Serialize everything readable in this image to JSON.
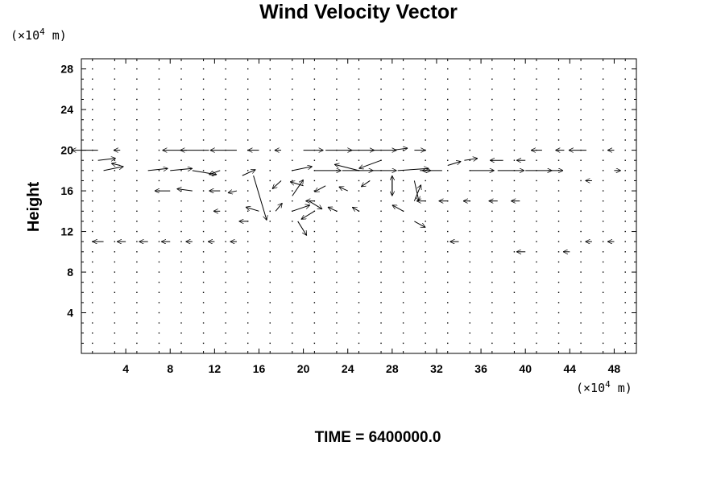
{
  "chart_data": {
    "type": "vector-field",
    "title": "Wind Velocity Vector",
    "ylabel": "Height",
    "x_unit_prefix": "(×10",
    "x_unit_exp": "4",
    "x_unit_suffix": " m)",
    "y_unit_prefix": "(×10",
    "y_unit_exp": "4",
    "y_unit_suffix": " m)",
    "footer": "TIME = 6400000.0",
    "xlim": [
      0,
      50
    ],
    "ylim": [
      0,
      29
    ],
    "x_ticks": [
      4,
      8,
      12,
      16,
      20,
      24,
      28,
      32,
      36,
      40,
      44,
      48
    ],
    "y_ticks": [
      4,
      8,
      12,
      16,
      20,
      24,
      28
    ],
    "x_tick_labels": [
      "4",
      "8",
      "12",
      "16",
      "20",
      "24",
      "28",
      "32",
      "36",
      "40",
      "44",
      "48"
    ],
    "y_tick_labels": [
      "4",
      "8",
      "12",
      "16",
      "20",
      "24",
      "28"
    ],
    "grid": false,
    "vectors": [
      {
        "x": 1.5,
        "y": 20,
        "u": -2.4,
        "v": 0
      },
      {
        "x": 3.5,
        "y": 20,
        "u": -0.6,
        "v": 0
      },
      {
        "x": 9.5,
        "y": 20,
        "u": -2.2,
        "v": 0
      },
      {
        "x": 11.5,
        "y": 20,
        "u": -2.6,
        "v": 0
      },
      {
        "x": 14,
        "y": 20,
        "u": -2.4,
        "v": 0
      },
      {
        "x": 16,
        "y": 20,
        "u": -1.0,
        "v": 0
      },
      {
        "x": 18,
        "y": 20,
        "u": -0.6,
        "v": 0
      },
      {
        "x": 20,
        "y": 20,
        "u": 1.8,
        "v": 0
      },
      {
        "x": 22,
        "y": 20,
        "u": 2.4,
        "v": 0
      },
      {
        "x": 24,
        "y": 20,
        "u": 2.4,
        "v": 0
      },
      {
        "x": 26,
        "y": 20,
        "u": 2.4,
        "v": 0
      },
      {
        "x": 28,
        "y": 20,
        "u": 1.4,
        "v": 0.2
      },
      {
        "x": 30,
        "y": 20,
        "u": 1.0,
        "v": 0
      },
      {
        "x": 33,
        "y": 18.5,
        "u": 1.2,
        "v": 0.4
      },
      {
        "x": 34.5,
        "y": 19,
        "u": 1.2,
        "v": 0.2
      },
      {
        "x": 38,
        "y": 19,
        "u": -1.2,
        "v": 0
      },
      {
        "x": 40,
        "y": 19,
        "u": -0.8,
        "v": 0
      },
      {
        "x": 41.5,
        "y": 20,
        "u": -1.0,
        "v": 0
      },
      {
        "x": 43.5,
        "y": 20,
        "u": -0.8,
        "v": 0
      },
      {
        "x": 45.5,
        "y": 20,
        "u": -1.6,
        "v": 0
      },
      {
        "x": 48,
        "y": 20,
        "u": -0.6,
        "v": 0
      },
      {
        "x": 1.5,
        "y": 19,
        "u": 1.6,
        "v": 0.2
      },
      {
        "x": 3.5,
        "y": 18.5,
        "u": -0.8,
        "v": 0.2
      },
      {
        "x": 2,
        "y": 18,
        "u": 1.8,
        "v": 0.4
      },
      {
        "x": 6,
        "y": 18,
        "u": 1.8,
        "v": 0.2
      },
      {
        "x": 8,
        "y": 18,
        "u": 2.0,
        "v": 0.2
      },
      {
        "x": 10,
        "y": 18,
        "u": 2.2,
        "v": -0.4
      },
      {
        "x": 12.5,
        "y": 18,
        "u": -1.0,
        "v": -0.4
      },
      {
        "x": 14.5,
        "y": 17.5,
        "u": 1.2,
        "v": 0.6
      },
      {
        "x": 19,
        "y": 18,
        "u": 1.8,
        "v": 0.4
      },
      {
        "x": 21,
        "y": 18,
        "u": 2.4,
        "v": 0
      },
      {
        "x": 23.5,
        "y": 18,
        "u": 2.8,
        "v": 0
      },
      {
        "x": 26,
        "y": 18,
        "u": 2.4,
        "v": 0
      },
      {
        "x": 28.5,
        "y": 18,
        "u": 2.8,
        "v": 0.2
      },
      {
        "x": 30.5,
        "y": 18,
        "u": 1.0,
        "v": 0
      },
      {
        "x": 32.5,
        "y": 18,
        "u": -1.8,
        "v": 0
      },
      {
        "x": 35,
        "y": 18,
        "u": 2.2,
        "v": 0
      },
      {
        "x": 37.5,
        "y": 18,
        "u": 2.4,
        "v": 0
      },
      {
        "x": 40,
        "y": 18,
        "u": 2.4,
        "v": 0
      },
      {
        "x": 42,
        "y": 18,
        "u": 1.4,
        "v": 0
      },
      {
        "x": 27,
        "y": 19,
        "u": -2.0,
        "v": -0.8
      },
      {
        "x": 25,
        "y": 18,
        "u": -2.2,
        "v": 0.6
      },
      {
        "x": 28,
        "y": 17.5,
        "u": 0,
        "v": -2.0
      },
      {
        "x": 28,
        "y": 15.5,
        "u": 0,
        "v": 2.0
      },
      {
        "x": 30,
        "y": 17,
        "u": 0.4,
        "v": -2.0
      },
      {
        "x": 30,
        "y": 15,
        "u": 0.6,
        "v": 1.6
      },
      {
        "x": 26,
        "y": 17,
        "u": -0.8,
        "v": -0.6
      },
      {
        "x": 24,
        "y": 16,
        "u": -0.8,
        "v": 0.4
      },
      {
        "x": 22,
        "y": 16.5,
        "u": -1.0,
        "v": -0.6
      },
      {
        "x": 20,
        "y": 16.5,
        "u": -1.2,
        "v": 0.4
      },
      {
        "x": 19,
        "y": 15.5,
        "u": 1.0,
        "v": 1.6
      },
      {
        "x": 20.5,
        "y": 15,
        "u": 1.2,
        "v": -0.8
      },
      {
        "x": 19,
        "y": 14,
        "u": 1.6,
        "v": 0.6
      },
      {
        "x": 21,
        "y": 14,
        "u": -1.2,
        "v": -0.8
      },
      {
        "x": 19.5,
        "y": 13,
        "u": 0.8,
        "v": -1.4
      },
      {
        "x": 17.5,
        "y": 14,
        "u": 0.6,
        "v": 0.8
      },
      {
        "x": 15.5,
        "y": 17.5,
        "u": 1.2,
        "v": -4.4
      },
      {
        "x": 16,
        "y": 14,
        "u": -1.2,
        "v": 0.4
      },
      {
        "x": 8,
        "y": 16,
        "u": -1.4,
        "v": 0
      },
      {
        "x": 10,
        "y": 16,
        "u": -1.4,
        "v": 0.2
      },
      {
        "x": 12.5,
        "y": 16,
        "u": -1.0,
        "v": 0
      },
      {
        "x": 14,
        "y": 16,
        "u": -0.8,
        "v": -0.2
      },
      {
        "x": 18,
        "y": 17,
        "u": -0.8,
        "v": -0.8
      },
      {
        "x": 31,
        "y": 15,
        "u": -0.8,
        "v": 0
      },
      {
        "x": 33,
        "y": 15,
        "u": -0.8,
        "v": 0
      },
      {
        "x": 35,
        "y": 15,
        "u": -0.6,
        "v": 0
      },
      {
        "x": 37.5,
        "y": 15,
        "u": -0.8,
        "v": 0
      },
      {
        "x": 39.5,
        "y": 15,
        "u": -0.8,
        "v": 0
      },
      {
        "x": 21,
        "y": 15,
        "u": -0.8,
        "v": 0
      },
      {
        "x": 23,
        "y": 14,
        "u": -0.8,
        "v": 0.4
      },
      {
        "x": 25,
        "y": 14,
        "u": -0.6,
        "v": 0.4
      },
      {
        "x": 29,
        "y": 14,
        "u": -1.0,
        "v": 0.6
      },
      {
        "x": 30,
        "y": 13,
        "u": 1.0,
        "v": -0.6
      },
      {
        "x": 12.5,
        "y": 14,
        "u": -0.6,
        "v": 0
      },
      {
        "x": 15,
        "y": 13,
        "u": -0.8,
        "v": 0
      },
      {
        "x": 2,
        "y": 11,
        "u": -1.0,
        "v": 0
      },
      {
        "x": 4,
        "y": 11,
        "u": -0.8,
        "v": 0
      },
      {
        "x": 6,
        "y": 11,
        "u": -0.8,
        "v": 0
      },
      {
        "x": 8,
        "y": 11,
        "u": -0.8,
        "v": 0
      },
      {
        "x": 10,
        "y": 11,
        "u": -0.6,
        "v": 0
      },
      {
        "x": 12,
        "y": 11,
        "u": -0.6,
        "v": 0
      },
      {
        "x": 14,
        "y": 11,
        "u": -0.6,
        "v": 0
      },
      {
        "x": 34,
        "y": 11,
        "u": -0.8,
        "v": 0
      },
      {
        "x": 40,
        "y": 10,
        "u": -0.8,
        "v": 0
      },
      {
        "x": 44,
        "y": 10,
        "u": -0.6,
        "v": 0
      },
      {
        "x": 46,
        "y": 11,
        "u": -0.6,
        "v": 0
      },
      {
        "x": 48,
        "y": 11,
        "u": -0.6,
        "v": 0
      },
      {
        "x": 48,
        "y": 18,
        "u": 0.6,
        "v": 0
      },
      {
        "x": 46,
        "y": 17,
        "u": -0.6,
        "v": 0
      }
    ]
  }
}
